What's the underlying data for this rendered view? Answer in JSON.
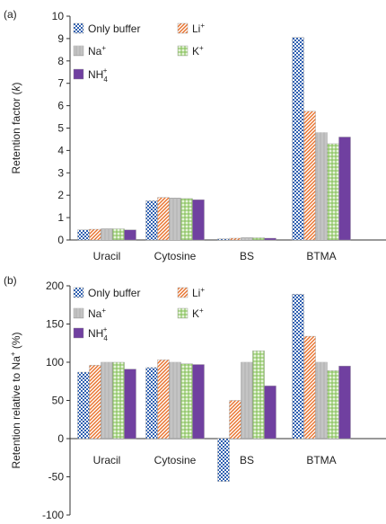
{
  "chart_data": [
    {
      "panel": "(a)",
      "type": "bar",
      "ylabel": "Retention factor (k)",
      "ylabel_parts": [
        "Retention factor (",
        "k",
        ")"
      ],
      "ylim": [
        0,
        10
      ],
      "yticks": [
        "0",
        "1",
        "2",
        "3",
        "4",
        "5",
        "6",
        "7",
        "8",
        "9",
        "10"
      ],
      "categories": [
        "Uracil",
        "Cytosine",
        "BS",
        "BTMA"
      ],
      "legend_placement": "top-left",
      "series": [
        {
          "name": "Only buffer",
          "key": "buffer",
          "values": [
            0.45,
            1.75,
            0.05,
            9.05
          ]
        },
        {
          "name": "Li+",
          "key": "li",
          "values": [
            0.48,
            1.9,
            0.08,
            5.75
          ]
        },
        {
          "name": "Na+",
          "key": "na",
          "values": [
            0.5,
            1.87,
            0.1,
            4.8
          ]
        },
        {
          "name": "K+",
          "key": "k",
          "values": [
            0.5,
            1.85,
            0.1,
            4.3
          ]
        },
        {
          "name": "NH4+",
          "key": "nh4",
          "values": [
            0.45,
            1.8,
            0.08,
            4.6
          ]
        }
      ]
    },
    {
      "panel": "(b)",
      "type": "bar",
      "ylabel": "Retention relative to Na+ (%)",
      "ylabel_parts": [
        "Retention relative to Na",
        "+",
        " (%)"
      ],
      "ylim": [
        -100,
        200
      ],
      "yticks": [
        "-100",
        "-50",
        "0",
        "50",
        "100",
        "150",
        "200"
      ],
      "categories": [
        "Uracil",
        "Cytosine",
        "BS",
        "BTMA"
      ],
      "legend_placement": "top-left",
      "series": [
        {
          "name": "Only buffer",
          "key": "buffer",
          "values": [
            87,
            93,
            -56,
            189
          ]
        },
        {
          "name": "Li+",
          "key": "li",
          "values": [
            96,
            103,
            50,
            134
          ]
        },
        {
          "name": "Na+",
          "key": "na",
          "values": [
            100,
            100,
            100,
            100
          ]
        },
        {
          "name": "K+",
          "key": "k",
          "values": [
            100,
            98,
            115,
            89
          ]
        },
        {
          "name": "NH4+",
          "key": "nh4",
          "values": [
            91,
            97,
            69,
            95
          ]
        }
      ]
    }
  ],
  "legend_labels": {
    "buffer": "Only buffer",
    "li": [
      "Li",
      "+"
    ],
    "na": [
      "Na",
      "+"
    ],
    "k": [
      "K",
      "+"
    ],
    "nh4": [
      "NH",
      "4",
      "+"
    ]
  },
  "colors": {
    "buffer": "#2e5fb0",
    "li": "#e8702a",
    "na": "#777777",
    "k": "#7dbd4e",
    "nh4": "#7040a0"
  }
}
